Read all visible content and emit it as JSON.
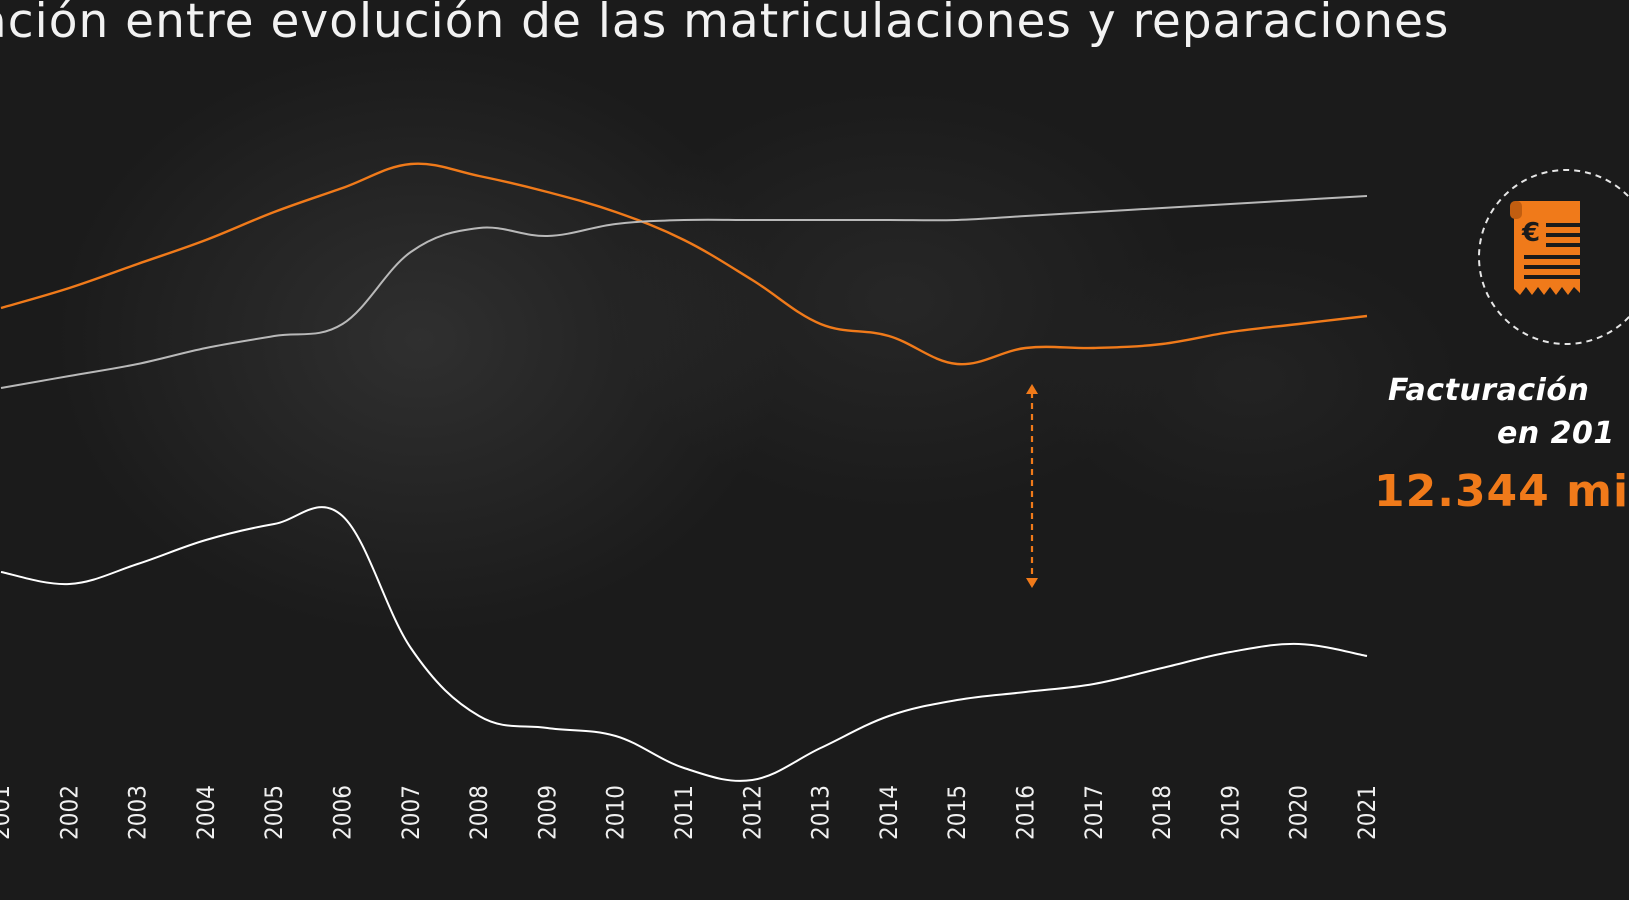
{
  "title": "ación entre evolución de las matriculaciones y reparaciones",
  "colors": {
    "accent": "#f07a1a",
    "background": "#1b1b1b",
    "line_white": "#ffffff",
    "line_grey": "#b9b9b9"
  },
  "callout": {
    "icon": "invoice-euro-icon",
    "label": "Facturación",
    "year_text": "en 201",
    "value_text": "12.344 mi"
  },
  "chart_data": {
    "type": "line",
    "title": "ación entre evolución de las matriculaciones y reparaciones",
    "xlabel": "",
    "ylabel": "",
    "x": [
      "2001",
      "2002",
      "2003",
      "2004",
      "2005",
      "2006",
      "2007",
      "2008",
      "2009",
      "2010",
      "2011",
      "2012",
      "2013",
      "2014",
      "2015",
      "2016",
      "2017",
      "2018",
      "2019",
      "2020",
      "2021"
    ],
    "y_axis_shown": false,
    "grid": false,
    "series": [
      {
        "color": "#f07a1a",
        "values": [
          3.0,
          3.5,
          4.1,
          4.7,
          5.4,
          6.0,
          6.6,
          6.3,
          5.9,
          5.4,
          4.7,
          3.7,
          2.6,
          2.3,
          1.6,
          2.0,
          2.0,
          2.1,
          2.4,
          2.6,
          2.8
        ]
      },
      {
        "color": "#b9b9b9",
        "values": [
          1.0,
          1.3,
          1.6,
          2.0,
          2.3,
          2.6,
          4.4,
          5.0,
          4.8,
          5.1,
          5.2,
          5.2,
          5.2,
          5.2,
          5.2,
          5.3,
          5.4,
          5.5,
          5.6,
          5.7,
          5.8
        ]
      },
      {
        "color": "#ffffff",
        "values": [
          -3.6,
          -3.9,
          -3.4,
          -2.8,
          -2.4,
          -2.2,
          -5.5,
          -7.2,
          -7.5,
          -7.7,
          -8.5,
          -8.8,
          -8.0,
          -7.2,
          -6.8,
          -6.6,
          -6.4,
          -6.0,
          -5.6,
          -5.4,
          -5.7
        ]
      }
    ],
    "annotation": "dashed double-headed arrow at 2016 between the orange and white series"
  }
}
